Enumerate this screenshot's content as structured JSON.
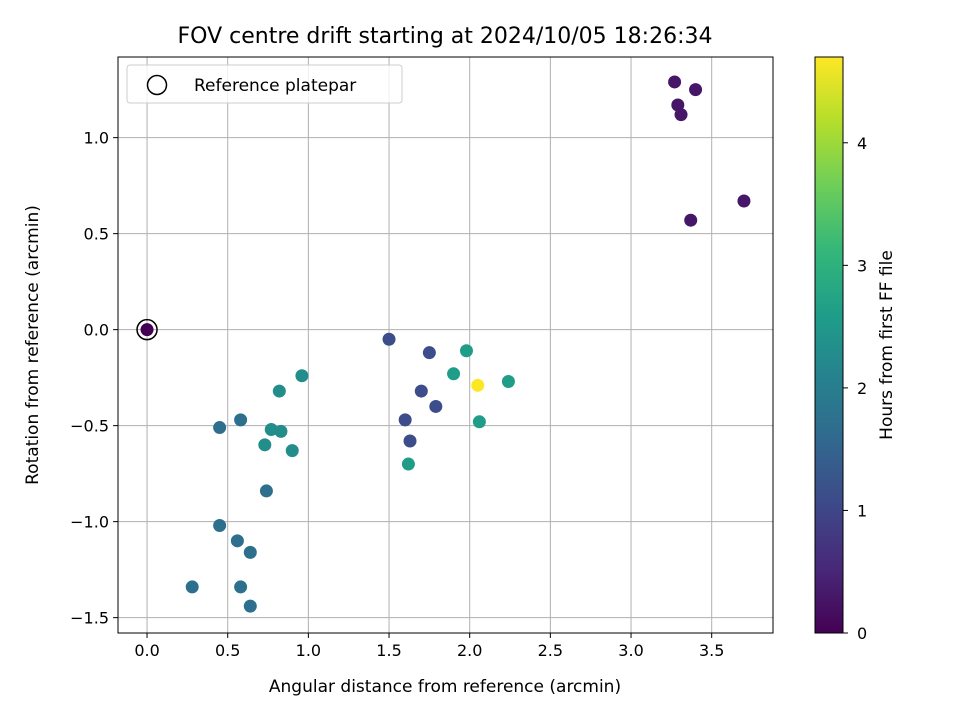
{
  "chart_data": {
    "type": "scatter",
    "title": "FOV centre drift starting at 2024/10/05 18:26:34",
    "xlabel": "Angular distance from reference (arcmin)",
    "ylabel": "Rotation from reference (arcmin)",
    "xlim": [
      -0.18,
      3.88
    ],
    "ylim": [
      -1.58,
      1.42
    ],
    "xticks": [
      0.0,
      0.5,
      1.0,
      1.5,
      2.0,
      2.5,
      3.0,
      3.5
    ],
    "xtick_labels": [
      "0.0",
      "0.5",
      "1.0",
      "1.5",
      "2.0",
      "2.5",
      "3.0",
      "3.5"
    ],
    "yticks": [
      -1.5,
      -1.0,
      -0.5,
      0.0,
      0.5,
      1.0
    ],
    "ytick_labels": [
      "−1.5",
      "−1.0",
      "−0.5",
      "0.0",
      "0.5",
      "1.0"
    ],
    "grid": true,
    "legend": {
      "placement": "upper-left",
      "entries": [
        "Reference platepar"
      ]
    },
    "colorbar": {
      "label": "Hours from first FF file",
      "range": [
        0,
        4.7
      ],
      "ticks": [
        0,
        1,
        2,
        3,
        4
      ],
      "tick_labels": [
        "0",
        "1",
        "2",
        "3",
        "4"
      ],
      "colormap": "viridis",
      "stops": [
        "#440154",
        "#482878",
        "#3e4989",
        "#31688e",
        "#26828e",
        "#1f9e89",
        "#35b779",
        "#6ece58",
        "#b5de2b",
        "#fde725"
      ]
    },
    "reference_point": {
      "x": 0.0,
      "y": 0.0,
      "hours": 0.0
    },
    "points": [
      {
        "x": 0.0,
        "y": 0.0,
        "hours": 0.0
      },
      {
        "x": 3.27,
        "y": 1.29,
        "hours": 0.3
      },
      {
        "x": 3.4,
        "y": 1.25,
        "hours": 0.3
      },
      {
        "x": 3.29,
        "y": 1.17,
        "hours": 0.3
      },
      {
        "x": 3.31,
        "y": 1.12,
        "hours": 0.3
      },
      {
        "x": 3.7,
        "y": 0.67,
        "hours": 0.3
      },
      {
        "x": 3.37,
        "y": 0.57,
        "hours": 0.3
      },
      {
        "x": 1.5,
        "y": -0.05,
        "hours": 1.1
      },
      {
        "x": 1.75,
        "y": -0.12,
        "hours": 1.1
      },
      {
        "x": 1.7,
        "y": -0.32,
        "hours": 1.1
      },
      {
        "x": 1.79,
        "y": -0.4,
        "hours": 1.1
      },
      {
        "x": 1.6,
        "y": -0.47,
        "hours": 1.1
      },
      {
        "x": 1.63,
        "y": -0.58,
        "hours": 1.1
      },
      {
        "x": 1.98,
        "y": -0.11,
        "hours": 2.6
      },
      {
        "x": 1.9,
        "y": -0.23,
        "hours": 2.6
      },
      {
        "x": 2.24,
        "y": -0.27,
        "hours": 2.6
      },
      {
        "x": 2.06,
        "y": -0.48,
        "hours": 2.6
      },
      {
        "x": 1.62,
        "y": -0.7,
        "hours": 2.6
      },
      {
        "x": 2.05,
        "y": -0.29,
        "hours": 4.7
      },
      {
        "x": 0.96,
        "y": -0.24,
        "hours": 2.3
      },
      {
        "x": 0.82,
        "y": -0.32,
        "hours": 2.3
      },
      {
        "x": 0.77,
        "y": -0.52,
        "hours": 2.3
      },
      {
        "x": 0.83,
        "y": -0.53,
        "hours": 2.3
      },
      {
        "x": 0.73,
        "y": -0.6,
        "hours": 2.3
      },
      {
        "x": 0.9,
        "y": -0.63,
        "hours": 2.3
      },
      {
        "x": 0.58,
        "y": -0.47,
        "hours": 1.7
      },
      {
        "x": 0.45,
        "y": -0.51,
        "hours": 1.7
      },
      {
        "x": 0.74,
        "y": -0.84,
        "hours": 1.7
      },
      {
        "x": 0.45,
        "y": -1.02,
        "hours": 1.7
      },
      {
        "x": 0.56,
        "y": -1.1,
        "hours": 1.7
      },
      {
        "x": 0.64,
        "y": -1.16,
        "hours": 1.7
      },
      {
        "x": 0.28,
        "y": -1.34,
        "hours": 1.7
      },
      {
        "x": 0.58,
        "y": -1.34,
        "hours": 1.7
      },
      {
        "x": 0.64,
        "y": -1.44,
        "hours": 1.7
      }
    ]
  }
}
